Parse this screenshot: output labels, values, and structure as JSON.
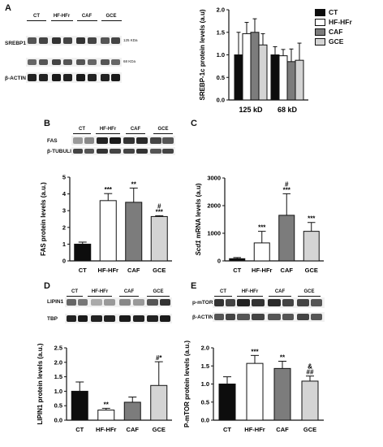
{
  "colors": {
    "CT": "#0d0d0d",
    "HFHFr": "#ffffff",
    "CAF": "#7c7c7c",
    "GCE": "#d4d4d4"
  },
  "legend": [
    {
      "label": "CT",
      "color": "#0d0d0d"
    },
    {
      "label": "HF-HFr",
      "color": "#ffffff"
    },
    {
      "label": "CAF",
      "color": "#7c7c7c"
    },
    {
      "label": "GCE",
      "color": "#d4d4d4"
    }
  ],
  "panels": {
    "A": {
      "letter": "A",
      "blot_groups": [
        "CT",
        "HF-HFr",
        "CAF",
        "GCE"
      ],
      "blot_rows": [
        {
          "name": "SREBP1c"
        },
        {
          "name": "β-ACTIN"
        }
      ],
      "kda": [
        "125 KDa",
        "68 KDa"
      ]
    },
    "B": {
      "letter": "B",
      "blot_groups": [
        "CT",
        "HF-HFr",
        "CAF",
        "GCE"
      ],
      "blot_rows": [
        {
          "name": "FAS"
        },
        {
          "name": "β-TUBULIN"
        }
      ]
    },
    "C": {
      "letter": "C"
    },
    "D": {
      "letter": "D",
      "blot_groups": [
        "CT",
        "HF-HFr",
        "CAF",
        "GCE"
      ],
      "blot_rows": [
        {
          "name": "LIPIN1"
        },
        {
          "name": "TBP"
        }
      ]
    },
    "E": {
      "letter": "E",
      "blot_groups": [
        "CT",
        "HF-HFr",
        "CAF",
        "GCE"
      ],
      "blot_rows": [
        {
          "name": "p-mTOR"
        },
        {
          "name": "β-ACTIN"
        }
      ]
    }
  },
  "chart_data": [
    {
      "panel": "A",
      "type": "bar",
      "ylabel": "SREBP-1c protein levels (a.u)",
      "ylim": [
        0,
        2.0
      ],
      "yticks": [
        "0.0",
        "0.5",
        "1.0",
        "1.5",
        "2.0"
      ],
      "ytick_values": [
        0,
        0.5,
        1.0,
        1.5,
        2.0
      ],
      "categories": [
        "125 kD",
        "68 kD"
      ],
      "series": [
        {
          "name": "CT",
          "color": "#0d0d0d",
          "values": [
            1.0,
            1.0
          ],
          "errors": [
            0.5,
            0.18
          ]
        },
        {
          "name": "HF-HFr",
          "color": "#ffffff",
          "values": [
            1.47,
            0.98
          ],
          "errors": [
            0.25,
            0.14
          ]
        },
        {
          "name": "CAF",
          "color": "#7c7c7c",
          "values": [
            1.5,
            0.85
          ],
          "errors": [
            0.3,
            0.28
          ]
        },
        {
          "name": "GCE",
          "color": "#d4d4d4",
          "values": [
            1.22,
            0.88
          ],
          "errors": [
            0.25,
            0.38
          ]
        }
      ],
      "annotations": []
    },
    {
      "panel": "B",
      "type": "bar",
      "ylabel": "FAS protein levels (a.u.)",
      "ylim": [
        0,
        5
      ],
      "yticks": [
        "0",
        "1",
        "2",
        "3",
        "4",
        "5"
      ],
      "ytick_values": [
        0,
        1,
        2,
        3,
        4,
        5
      ],
      "categories": [
        "CT",
        "HF-HFr",
        "CAF",
        "GCE"
      ],
      "values": [
        1.0,
        3.6,
        3.5,
        2.65
      ],
      "errors": [
        0.12,
        0.42,
        0.85,
        0.05
      ],
      "colors": [
        "#0d0d0d",
        "#ffffff",
        "#7c7c7c",
        "#d4d4d4"
      ],
      "annotations": [
        [],
        [
          "***"
        ],
        [
          "**"
        ],
        [
          "#",
          "***"
        ]
      ]
    },
    {
      "panel": "C",
      "type": "bar",
      "ylabel_italic": "Scd1",
      "ylabel_rest": " mRNA levels (a.u)",
      "ylim": [
        0,
        3000
      ],
      "yticks": [
        "0",
        "1000",
        "2000",
        "3000"
      ],
      "ytick_values": [
        0,
        1000,
        2000,
        3000
      ],
      "categories": [
        "CT",
        "HF-HFr",
        "CAF",
        "GCE"
      ],
      "values": [
        80,
        650,
        1650,
        1070
      ],
      "errors": [
        40,
        420,
        780,
        320
      ],
      "colors": [
        "#0d0d0d",
        "#ffffff",
        "#7c7c7c",
        "#d4d4d4"
      ],
      "annotations": [
        [],
        [
          "***"
        ],
        [
          "#",
          "***"
        ],
        [
          "***"
        ]
      ]
    },
    {
      "panel": "D",
      "type": "bar",
      "ylabel": "LIPIN1 protein levels (a.u.)",
      "ylim": [
        0,
        2.5
      ],
      "yticks": [
        "0.0",
        "0.5",
        "1.0",
        "1.5",
        "2.0",
        "2.5"
      ],
      "ytick_values": [
        0,
        0.5,
        1.0,
        1.5,
        2.0,
        2.5
      ],
      "categories": [
        "CT",
        "HF-HFr",
        "CAF",
        "GCE"
      ],
      "values": [
        1.0,
        0.35,
        0.62,
        1.2
      ],
      "errors": [
        0.32,
        0.06,
        0.18,
        0.82
      ],
      "colors": [
        "#0d0d0d",
        "#ffffff",
        "#7c7c7c",
        "#d4d4d4"
      ],
      "annotations": [
        [],
        [
          "**"
        ],
        [],
        [
          "#*"
        ]
      ]
    },
    {
      "panel": "E",
      "type": "bar",
      "ylabel": "P-mTOR protein levels (a.u.)",
      "ylim": [
        0,
        2.0
      ],
      "yticks": [
        "0.0",
        "0.5",
        "1.0",
        "1.5",
        "2.0"
      ],
      "ytick_values": [
        0,
        0.5,
        1.0,
        1.5,
        2.0
      ],
      "categories": [
        "CT",
        "HF-HFr",
        "CAF",
        "GCE"
      ],
      "values": [
        1.0,
        1.57,
        1.43,
        1.08
      ],
      "errors": [
        0.2,
        0.22,
        0.2,
        0.14
      ],
      "colors": [
        "#0d0d0d",
        "#ffffff",
        "#7c7c7c",
        "#d4d4d4"
      ],
      "annotations": [
        [],
        [
          "***"
        ],
        [
          "**"
        ],
        [
          "&",
          "##"
        ]
      ]
    }
  ]
}
